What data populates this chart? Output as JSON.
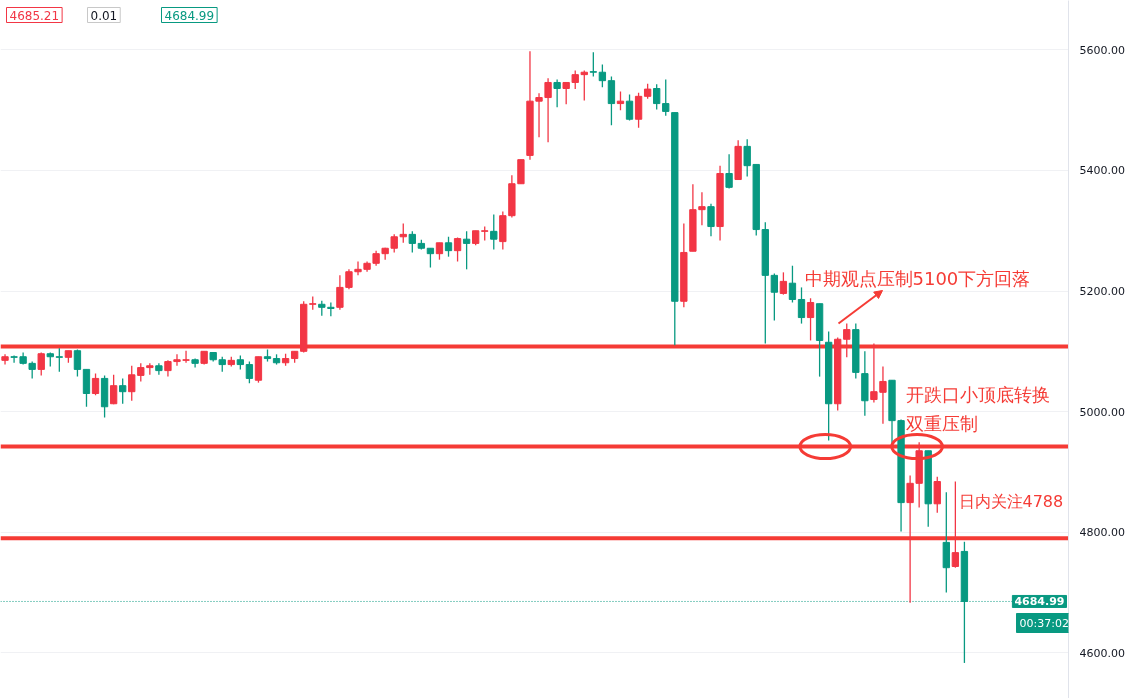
{
  "chart_data": {
    "type": "candlestick",
    "categories": [
      null,
      null,
      null,
      null,
      null,
      null,
      null,
      null,
      null,
      null,
      null,
      null,
      null,
      null,
      null,
      null,
      null,
      null,
      null,
      null,
      null,
      null,
      null,
      null,
      null,
      null,
      null,
      null,
      null,
      null,
      null,
      null,
      null,
      null,
      null,
      null,
      null,
      null,
      null,
      null,
      null,
      null,
      null,
      null,
      null,
      null,
      null,
      null,
      null,
      null,
      null,
      null,
      null,
      null,
      null,
      null,
      null,
      null,
      null,
      null,
      null,
      null,
      null,
      null,
      null,
      null,
      null,
      null,
      null,
      null,
      null,
      null,
      null,
      null,
      null,
      null,
      null,
      null,
      null,
      null,
      null,
      null,
      null,
      null,
      null,
      null,
      null,
      null,
      null,
      null,
      null,
      null,
      null,
      null,
      null,
      null,
      null,
      null,
      null,
      null,
      null,
      null,
      null,
      null,
      null,
      null,
      null,
      null,
      null,
      null,
      null,
      null,
      null,
      null,
      null,
      null,
      null,
      null
    ],
    "ohlc": [
      [
        5085,
        5095,
        5078,
        5091
      ],
      [
        5091,
        5093,
        5081,
        5090
      ],
      [
        5091,
        5098,
        5078,
        5080
      ],
      [
        5080,
        5083,
        5055,
        5070
      ],
      [
        5070,
        5098,
        5060,
        5096
      ],
      [
        5096,
        5098,
        5075,
        5091
      ],
      [
        5091,
        5105,
        5066,
        5090
      ],
      [
        5090,
        5101,
        5081,
        5101
      ],
      [
        5101,
        5103,
        5058,
        5070
      ],
      [
        5070,
        5070,
        5008,
        5030
      ],
      [
        5030,
        5063,
        5027,
        5055
      ],
      [
        5055,
        5060,
        4990,
        5008
      ],
      [
        5013,
        5061,
        5012,
        5043
      ],
      [
        5043,
        5055,
        5013,
        5033
      ],
      [
        5033,
        5076,
        5018,
        5061
      ],
      [
        5060,
        5080,
        5050,
        5073
      ],
      [
        5073,
        5080,
        5061,
        5076
      ],
      [
        5076,
        5080,
        5061,
        5068
      ],
      [
        5068,
        5085,
        5058,
        5083
      ],
      [
        5083,
        5095,
        5076,
        5086
      ],
      [
        5085,
        5101,
        5081,
        5086
      ],
      [
        5086,
        5088,
        5073,
        5080
      ],
      [
        5080,
        5100,
        5078,
        5100
      ],
      [
        5098,
        5098,
        5083,
        5086
      ],
      [
        5086,
        5091,
        5066,
        5078
      ],
      [
        5078,
        5091,
        5075,
        5085
      ],
      [
        5086,
        5093,
        5070,
        5078
      ],
      [
        5078,
        5083,
        5047,
        5055
      ],
      [
        5052,
        5091,
        5048,
        5091
      ],
      [
        5091,
        5103,
        5083,
        5088
      ],
      [
        5088,
        5095,
        5078,
        5081
      ],
      [
        5081,
        5096,
        5076,
        5088
      ],
      [
        5088,
        5100,
        5081,
        5100
      ],
      [
        5100,
        5183,
        5098,
        5178
      ],
      [
        5178,
        5191,
        5169,
        5179
      ],
      [
        5178,
        5184,
        5159,
        5173
      ],
      [
        5173,
        5181,
        5158,
        5171
      ],
      [
        5173,
        5226,
        5169,
        5206
      ],
      [
        5206,
        5236,
        5203,
        5232
      ],
      [
        5232,
        5249,
        5226,
        5236
      ],
      [
        5236,
        5249,
        5232,
        5246
      ],
      [
        5246,
        5267,
        5242,
        5262
      ],
      [
        5262,
        5272,
        5252,
        5271
      ],
      [
        5271,
        5294,
        5264,
        5290
      ],
      [
        5290,
        5312,
        5280,
        5294
      ],
      [
        5294,
        5299,
        5264,
        5279
      ],
      [
        5279,
        5285,
        5269,
        5271
      ],
      [
        5271,
        5271,
        5239,
        5262
      ],
      [
        5262,
        5280,
        5252,
        5280
      ],
      [
        5280,
        5290,
        5257,
        5267
      ],
      [
        5267,
        5289,
        5249,
        5287
      ],
      [
        5286,
        5299,
        5236,
        5279
      ],
      [
        5279,
        5300,
        5276,
        5300
      ],
      [
        5299,
        5307,
        5284,
        5300
      ],
      [
        5299,
        5327,
        5269,
        5286
      ],
      [
        5282,
        5332,
        5269,
        5325
      ],
      [
        5325,
        5392,
        5322,
        5378
      ],
      [
        5378,
        5418,
        5378,
        5418
      ],
      [
        5425,
        5598,
        5418,
        5515
      ],
      [
        5515,
        5528,
        5455,
        5521
      ],
      [
        5521,
        5553,
        5447,
        5546
      ],
      [
        5546,
        5551,
        5505,
        5536
      ],
      [
        5536,
        5546,
        5510,
        5546
      ],
      [
        5546,
        5566,
        5535,
        5559
      ],
      [
        5559,
        5566,
        5516,
        5563
      ],
      [
        5564,
        5596,
        5556,
        5563
      ],
      [
        5563,
        5576,
        5538,
        5549
      ],
      [
        5549,
        5556,
        5475,
        5511
      ],
      [
        5511,
        5531,
        5500,
        5515
      ],
      [
        5515,
        5526,
        5483,
        5485
      ],
      [
        5485,
        5529,
        5471,
        5523
      ],
      [
        5523,
        5544,
        5519,
        5535
      ],
      [
        5536,
        5543,
        5501,
        5511
      ],
      [
        5511,
        5551,
        5491,
        5498
      ],
      [
        5496,
        5496,
        5110,
        5183
      ],
      [
        5183,
        5312,
        5173,
        5264
      ],
      [
        5266,
        5377,
        5266,
        5335
      ],
      [
        5335,
        5364,
        5309,
        5340
      ],
      [
        5340,
        5345,
        5291,
        5307
      ],
      [
        5307,
        5408,
        5284,
        5395
      ],
      [
        5395,
        5427,
        5370,
        5372
      ],
      [
        5385,
        5450,
        5385,
        5440
      ],
      [
        5440,
        5452,
        5390,
        5408
      ],
      [
        5410,
        5410,
        5292,
        5302
      ],
      [
        5302,
        5314,
        5113,
        5226
      ],
      [
        5226,
        5229,
        5151,
        5198
      ],
      [
        5196,
        5231,
        5194,
        5216
      ],
      [
        5213,
        5242,
        5181,
        5186
      ],
      [
        5186,
        5206,
        5146,
        5156
      ],
      [
        5156,
        5188,
        5118,
        5181
      ],
      [
        5179,
        5179,
        5058,
        5118
      ],
      [
        5115,
        5133,
        4952,
        5013
      ],
      [
        5013,
        5123,
        5002,
        5120
      ],
      [
        5120,
        5146,
        5090,
        5136
      ],
      [
        5136,
        5146,
        5055,
        5065
      ],
      [
        5063,
        5100,
        4993,
        5018
      ],
      [
        5020,
        5113,
        5015,
        5033
      ],
      [
        5032,
        5075,
        4980,
        5050
      ],
      [
        5052,
        5052,
        4945,
        4985
      ],
      [
        4985,
        4987,
        4801,
        4849
      ],
      [
        4849,
        4894,
        4683,
        4881
      ],
      [
        4881,
        4949,
        4841,
        4935
      ],
      [
        4935,
        4935,
        4809,
        4847
      ],
      [
        4847,
        4892,
        4832,
        4884
      ],
      [
        4783,
        4866,
        4700,
        4741
      ],
      [
        4743,
        4884,
        4741,
        4766
      ],
      [
        4768,
        4784,
        4583,
        4684.99
      ],
      null,
      null,
      null,
      null,
      null,
      null,
      null,
      null,
      null,
      null,
      null
    ],
    "colors": [
      "#f23645",
      "#089981",
      "#089981",
      "#089981",
      "#f23645",
      "#089981",
      "#089981",
      "#f23645",
      "#089981",
      "#089981",
      "#f23645",
      "#089981",
      "#f23645",
      "#089981",
      "#f23645",
      "#f23645",
      "#f23645",
      "#089981",
      "#f23645",
      "#f23645",
      "#f23645",
      "#089981",
      "#f23645",
      "#089981",
      "#089981",
      "#f23645",
      "#089981",
      "#089981",
      "#f23645",
      "#089981",
      "#089981",
      "#f23645",
      "#f23645",
      "#f23645",
      "#f23645",
      "#089981",
      "#089981",
      "#f23645",
      "#f23645",
      "#f23645",
      "#f23645",
      "#f23645",
      "#f23645",
      "#f23645",
      "#f23645",
      "#089981",
      "#089981",
      "#089981",
      "#f23645",
      "#089981",
      "#f23645",
      "#089981",
      "#f23645",
      "#f23645",
      "#089981",
      "#f23645",
      "#f23645",
      "#f23645",
      "#f23645",
      "#f23645",
      "#f23645",
      "#089981",
      "#f23645",
      "#f23645",
      "#f23645",
      "#089981",
      "#089981",
      "#089981",
      "#f23645",
      "#089981",
      "#f23645",
      "#f23645",
      "#089981",
      "#089981",
      "#089981",
      "#f23645",
      "#f23645",
      "#f23645",
      "#089981",
      "#f23645",
      "#089981",
      "#f23645",
      "#089981",
      "#089981",
      "#089981",
      "#089981",
      "#f23645",
      "#089981",
      "#089981",
      "#f23645",
      "#089981",
      "#089981",
      "#f23645",
      "#f23645",
      "#089981",
      "#089981",
      "#f23645",
      "#f23645",
      "#089981",
      "#089981",
      "#f23645",
      "#f23645",
      "#089981",
      "#f23645",
      "#089981",
      "#f23645",
      "#089981",
      null,
      null,
      null,
      null,
      null,
      null,
      null,
      null,
      null,
      null,
      null
    ],
    "ylim": [
      4524,
      5682
    ],
    "yticks": [
      {
        "value": 4600,
        "label": "4600.00"
      },
      {
        "value": 4800,
        "label": "4800.00"
      },
      {
        "value": 5000,
        "label": "5000.00"
      },
      {
        "value": 5200,
        "label": "5200.00"
      },
      {
        "value": 5400,
        "label": "5400.00"
      },
      {
        "value": 5600,
        "label": "5600.00"
      }
    ],
    "tick_labels": "y",
    "grid": "y",
    "ref_lines": [
      {
        "axis": "y",
        "value": 5108,
        "label": null,
        "color": "#f53b35",
        "line_style": "solid"
      },
      {
        "axis": "y",
        "value": 4942,
        "label": null,
        "color": "#f53b35",
        "line_style": "solid"
      },
      {
        "axis": "y",
        "value": 4790,
        "label": null,
        "color": "#f53b35",
        "line_style": "solid"
      },
      {
        "axis": "y",
        "value": 4684.99,
        "label": "4684.99",
        "color": "#089981",
        "line_style": "dotted"
      }
    ],
    "annotations": [
      "4685.21",
      "0.01",
      "4684.99",
      "00:37:02",
      "中期观点压制5100下方回落",
      "开跌口小顶底转换",
      "双重压制",
      "日内关注4788"
    ]
  }
}
